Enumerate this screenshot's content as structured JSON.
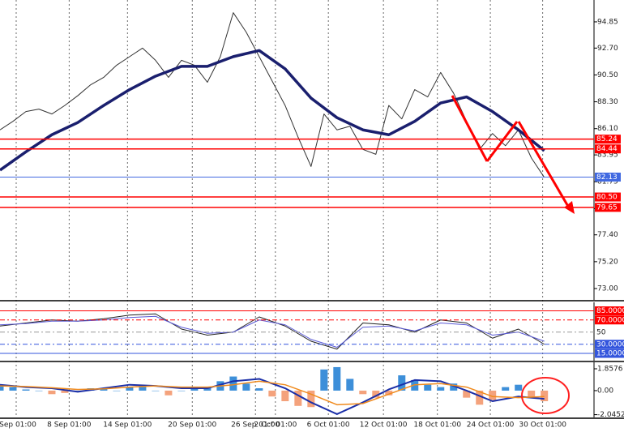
{
  "chart_data": [
    {
      "type": "line",
      "xlim": [
        0,
        110
      ],
      "xticks": [
        {
          "value": 3.0,
          "label": "Sep 01:00"
        },
        {
          "value": 12.8,
          "label": "8 Sep 01:00"
        },
        {
          "value": 23.6,
          "label": "14 Sep 01:00"
        },
        {
          "value": 35.6,
          "label": "20 Sep 01:00"
        },
        {
          "value": 47.3,
          "label": "26 Sep 01:00"
        },
        {
          "value": 51.0,
          "label": "2 Oct 01:00"
        },
        {
          "value": 60.8,
          "label": "6 Oct 01:00"
        },
        {
          "value": 71.0,
          "label": "12 Oct 01:00"
        },
        {
          "value": 81.0,
          "label": "18 Oct 01:00"
        },
        {
          "value": 90.8,
          "label": "24 Oct 01:00"
        },
        {
          "value": 100.5,
          "label": "30 Oct 01:00"
        }
      ],
      "ylim": [
        72.07,
        96.64
      ],
      "yticks": [
        {
          "value": 94.85,
          "label": "94.85"
        },
        {
          "value": 92.7,
          "label": "92.70"
        },
        {
          "value": 90.5,
          "label": "90.50"
        },
        {
          "value": 88.3,
          "label": "88.30"
        },
        {
          "value": 86.1,
          "label": "86.10"
        },
        {
          "value": 83.95,
          "label": "83.95"
        },
        {
          "value": 81.75,
          "label": "81.75"
        },
        {
          "value": 79.55,
          "label": "79.55"
        },
        {
          "value": 77.4,
          "label": "77.40"
        },
        {
          "value": 75.2,
          "label": "75.20"
        },
        {
          "value": 73.0,
          "label": "73.00"
        }
      ],
      "levels": [
        {
          "value": 85.24,
          "color": "#ff0000",
          "box": true
        },
        {
          "value": 84.44,
          "color": "#ff0000",
          "box": true
        },
        {
          "value": 82.13,
          "color": "#4169e1",
          "box": true
        },
        {
          "value": 80.5,
          "label": "80.50",
          "color": "#ff0000",
          "box": true
        },
        {
          "value": 79.65,
          "color": "#ff0000",
          "box": true
        }
      ],
      "series": [
        {
          "color": "#333333",
          "width": 1,
          "x": [
            0,
            2.4,
            4.8,
            7.2,
            9.6,
            12,
            14.4,
            16.8,
            19.2,
            21.6,
            24,
            26.4,
            28.8,
            31.2,
            33.6,
            36,
            38.4,
            40.8,
            43.2,
            45.6,
            48,
            50.4,
            52.8,
            55.2,
            57.6,
            60,
            62.4,
            64.8,
            67.2,
            69.6,
            72,
            74.4,
            76.8,
            79.2,
            81.6,
            84,
            86.4,
            88.8,
            91.2,
            93.6,
            96,
            98.4,
            100.8
          ],
          "values": [
            86.0,
            86.7,
            87.5,
            87.7,
            87.3,
            88.0,
            88.8,
            89.7,
            90.3,
            91.3,
            92.0,
            92.7,
            91.7,
            90.3,
            91.7,
            91.3,
            89.9,
            92.0,
            95.6,
            94.0,
            92.0,
            90.0,
            88.0,
            85.4,
            83.0,
            87.3,
            86.0,
            86.3,
            84.4,
            84.0,
            88.0,
            86.9,
            89.3,
            88.7,
            90.7,
            89.0,
            86.7,
            84.4,
            85.7,
            84.7,
            86.0,
            83.7,
            82.1
          ]
        },
        {
          "color": "#1a1f6e",
          "width": 3.5,
          "x": [
            0,
            4.8,
            9.6,
            14.4,
            19.2,
            24,
            28.8,
            33.6,
            38.4,
            43.2,
            48,
            52.8,
            57.6,
            62.4,
            67.2,
            72,
            76.8,
            81.6,
            86.4,
            91.2,
            96,
            100.8
          ],
          "values": [
            82.7,
            84.2,
            85.6,
            86.6,
            88.0,
            89.3,
            90.4,
            91.2,
            91.2,
            92.0,
            92.5,
            91.0,
            88.6,
            87.0,
            86.0,
            85.6,
            86.7,
            88.2,
            88.7,
            87.5,
            86.0,
            84.3
          ]
        }
      ]
    },
    {
      "type": "line",
      "ylim": [
        3,
        99
      ],
      "levels": [
        {
          "value": 85,
          "label": "85.0000",
          "color": "#ff0000",
          "box": true
        },
        {
          "value": 70,
          "label": "70.0000",
          "color": "#ff0000",
          "box": true,
          "dash": true
        },
        {
          "value": 50,
          "color": "#999999",
          "box": false,
          "dash": true
        },
        {
          "value": 30,
          "label": "30.0000",
          "color": "#3355dd",
          "box": true,
          "dash": true
        },
        {
          "value": 15,
          "label": "15.0000",
          "color": "#3355dd",
          "box": true
        }
      ],
      "series": [
        {
          "color": "#222222",
          "width": 1,
          "x": [
            0,
            4.8,
            9.6,
            14.4,
            19.2,
            24,
            28.8,
            33.6,
            38.4,
            43.2,
            48,
            52.8,
            57.6,
            62.4,
            67.2,
            72,
            76.8,
            81.6,
            86.4,
            91.2,
            96,
            100.8
          ],
          "values": [
            60,
            65,
            70,
            68,
            72,
            78,
            80,
            55,
            45,
            50,
            75,
            60,
            35,
            22,
            65,
            62,
            50,
            70,
            65,
            40,
            55,
            30
          ]
        },
        {
          "color": "#5a5ad6",
          "width": 1,
          "x": [
            0,
            4.8,
            9.6,
            14.4,
            19.2,
            24,
            28.8,
            33.6,
            38.4,
            43.2,
            48,
            52.8,
            57.6,
            62.4,
            67.2,
            72,
            76.8,
            81.6,
            86.4,
            91.2,
            96,
            100.8
          ],
          "values": [
            62,
            64,
            68,
            68,
            70,
            74,
            76,
            58,
            48,
            50,
            70,
            62,
            38,
            25,
            58,
            60,
            52,
            65,
            62,
            45,
            50,
            35
          ]
        }
      ]
    },
    {
      "type": "line",
      "ylim": [
        -2.28,
        2.41
      ],
      "yticks": [
        1.8576,
        {
          "value": 0,
          "label": "0.00"
        },
        -2.0452
      ],
      "series": [
        {
          "type": "bar",
          "color": "#3d8fd9",
          "negative_color": "#f4a27c",
          "x": [
            0,
            2.4,
            4.8,
            7.2,
            9.6,
            12,
            14.4,
            16.8,
            19.2,
            21.6,
            24,
            26.4,
            28.8,
            31.2,
            33.6,
            36,
            38.4,
            40.8,
            43.2,
            45.6,
            48,
            50.4,
            52.8,
            55.2,
            57.6,
            60,
            62.4,
            64.8,
            67.2,
            69.6,
            72,
            74.4,
            76.8,
            79.2,
            81.6,
            84,
            86.4,
            88.8,
            91.2,
            93.6,
            96,
            98.4,
            100.8
          ],
          "values": [
            0.4,
            0.3,
            0.1,
            0,
            -0.3,
            -0.2,
            0,
            0.2,
            0.2,
            0,
            0.3,
            0.4,
            0,
            -0.4,
            0,
            0.3,
            0.3,
            0.8,
            1.2,
            0.6,
            0.2,
            -0.5,
            -0.9,
            -1.3,
            -1.4,
            1.8,
            2.0,
            1.0,
            -0.3,
            -0.6,
            -0.4,
            1.3,
            0.9,
            0.5,
            0.3,
            0.6,
            -0.6,
            -1.2,
            -0.8,
            0.3,
            0.5,
            -0.6,
            -0.9
          ]
        },
        {
          "color": "#1b2fa8",
          "width": 2,
          "x": [
            0,
            4.8,
            9.6,
            14.4,
            19.2,
            24,
            28.8,
            33.6,
            38.4,
            43.2,
            48,
            52.8,
            57.6,
            62.4,
            67.2,
            72,
            76.8,
            81.6,
            86.4,
            91.2,
            96,
            100.8
          ],
          "values": [
            0.5,
            0.3,
            0.2,
            -0.1,
            0.2,
            0.5,
            0.4,
            0.2,
            0.2,
            0.8,
            1.0,
            0.2,
            -1.0,
            -2.0,
            -1.0,
            0.1,
            0.9,
            0.8,
            0.0,
            -0.9,
            -0.5,
            -0.7
          ]
        },
        {
          "color": "#f08a1c",
          "width": 1.5,
          "x": [
            0,
            4.8,
            9.6,
            14.4,
            19.2,
            24,
            28.8,
            33.6,
            38.4,
            43.2,
            48,
            52.8,
            57.6,
            62.4,
            67.2,
            72,
            76.8,
            81.6,
            86.4,
            91.2,
            96,
            100.8
          ],
          "values": [
            0.4,
            0.35,
            0.25,
            0.1,
            0.15,
            0.3,
            0.4,
            0.3,
            0.3,
            0.5,
            0.8,
            0.5,
            -0.3,
            -1.2,
            -1.1,
            -0.3,
            0.5,
            0.6,
            0.3,
            -0.5,
            -0.6,
            -0.5
          ]
        }
      ]
    }
  ]
}
